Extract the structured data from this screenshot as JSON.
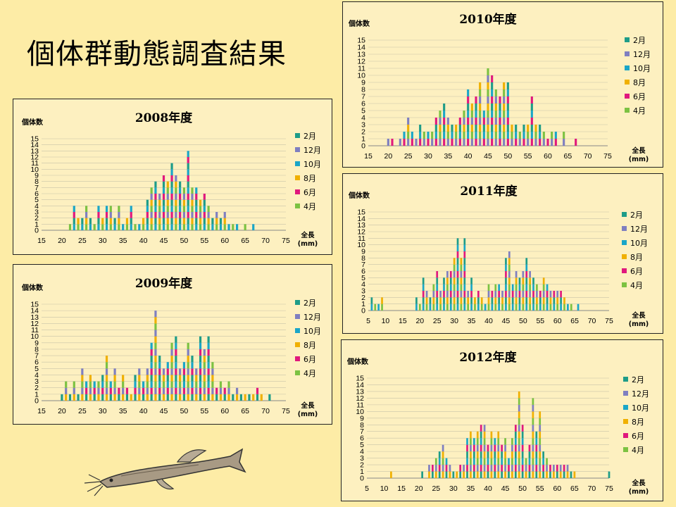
{
  "slide": {
    "title": "個体群動態調査結果"
  },
  "labels": {
    "y_axis": "個体数",
    "x_axis_top": "全長",
    "x_axis_unit": "(mm)"
  },
  "legend": [
    {
      "label": "2月",
      "color": "#1e9c88"
    },
    {
      "label": "12月",
      "color": "#7f7fc0"
    },
    {
      "label": "10月",
      "color": "#1aa6c8"
    },
    {
      "label": "8月",
      "color": "#f0b000"
    },
    {
      "label": "6月",
      "color": "#e0197d"
    },
    {
      "label": "4月",
      "color": "#7cc242"
    }
  ],
  "decoration": {
    "image": "catfish-illustration"
  },
  "chart_data": [
    {
      "type": "bar",
      "stacked": true,
      "title": "2008年度",
      "ylabel": "個体数",
      "xlabel": "全長 (mm)",
      "xlim": [
        15,
        75
      ],
      "ylim": [
        0,
        15
      ],
      "xticks": [
        15,
        20,
        25,
        30,
        35,
        40,
        45,
        50,
        55,
        60,
        65,
        70,
        75
      ],
      "totals": [
        [
          22,
          1
        ],
        [
          23,
          4
        ],
        [
          24,
          2
        ],
        [
          25,
          2
        ],
        [
          26,
          4
        ],
        [
          27,
          2
        ],
        [
          28,
          1
        ],
        [
          29,
          4
        ],
        [
          30,
          2
        ],
        [
          31,
          4
        ],
        [
          32,
          4
        ],
        [
          33,
          2
        ],
        [
          34,
          4
        ],
        [
          35,
          1
        ],
        [
          36,
          2
        ],
        [
          37,
          4
        ],
        [
          38,
          1
        ],
        [
          39,
          1
        ],
        [
          40,
          2
        ],
        [
          41,
          5
        ],
        [
          42,
          7
        ],
        [
          43,
          8
        ],
        [
          44,
          6
        ],
        [
          45,
          9
        ],
        [
          46,
          8
        ],
        [
          47,
          11
        ],
        [
          48,
          9
        ],
        [
          49,
          8
        ],
        [
          50,
          7
        ],
        [
          51,
          13
        ],
        [
          52,
          7
        ],
        [
          53,
          7
        ],
        [
          54,
          5
        ],
        [
          55,
          6
        ],
        [
          56,
          4
        ],
        [
          57,
          2
        ],
        [
          58,
          3
        ],
        [
          59,
          2
        ],
        [
          60,
          3
        ],
        [
          61,
          1
        ],
        [
          62,
          1
        ],
        [
          63,
          1
        ],
        [
          65,
          1
        ],
        [
          67,
          1
        ]
      ],
      "month_order": [
        "4月",
        "6月",
        "8月",
        "10月",
        "12月",
        "2月"
      ]
    },
    {
      "type": "bar",
      "stacked": true,
      "title": "2009年度",
      "ylabel": "個体数",
      "xlabel": "全長 (mm)",
      "xlim": [
        15,
        75
      ],
      "ylim": [
        0,
        15
      ],
      "xticks": [
        15,
        20,
        25,
        30,
        35,
        40,
        45,
        50,
        55,
        60,
        65,
        70,
        75
      ],
      "totals": [
        [
          20,
          1
        ],
        [
          21,
          3
        ],
        [
          22,
          1
        ],
        [
          23,
          3
        ],
        [
          24,
          1
        ],
        [
          25,
          5
        ],
        [
          26,
          3
        ],
        [
          27,
          4
        ],
        [
          28,
          3
        ],
        [
          29,
          3
        ],
        [
          30,
          4
        ],
        [
          31,
          7
        ],
        [
          32,
          3
        ],
        [
          33,
          5
        ],
        [
          34,
          2
        ],
        [
          35,
          4
        ],
        [
          36,
          2
        ],
        [
          37,
          1
        ],
        [
          38,
          4
        ],
        [
          39,
          5
        ],
        [
          40,
          3
        ],
        [
          41,
          5
        ],
        [
          42,
          9
        ],
        [
          43,
          14
        ],
        [
          44,
          7
        ],
        [
          45,
          5
        ],
        [
          46,
          6
        ],
        [
          47,
          9
        ],
        [
          48,
          10
        ],
        [
          49,
          5
        ],
        [
          50,
          6
        ],
        [
          51,
          9
        ],
        [
          52,
          7
        ],
        [
          53,
          5
        ],
        [
          54,
          10
        ],
        [
          55,
          8
        ],
        [
          56,
          10
        ],
        [
          57,
          6
        ],
        [
          58,
          2
        ],
        [
          59,
          3
        ],
        [
          60,
          2
        ],
        [
          61,
          3
        ],
        [
          62,
          1
        ],
        [
          63,
          2
        ],
        [
          64,
          1
        ],
        [
          65,
          1
        ],
        [
          66,
          1
        ],
        [
          67,
          1
        ],
        [
          68,
          2
        ],
        [
          69,
          1
        ],
        [
          71,
          1
        ]
      ],
      "month_order": [
        "4月",
        "6月",
        "8月",
        "10月",
        "12月",
        "2月"
      ]
    },
    {
      "type": "bar",
      "stacked": true,
      "title": "2010年度",
      "ylabel": "個体数",
      "xlabel": "全長 (mm)",
      "xlim": [
        15,
        75
      ],
      "ylim": [
        0,
        15
      ],
      "xticks": [
        15,
        20,
        25,
        30,
        35,
        40,
        45,
        50,
        55,
        60,
        65,
        70,
        75
      ],
      "totals": [
        [
          20,
          1
        ],
        [
          21,
          1
        ],
        [
          23,
          1
        ],
        [
          24,
          2
        ],
        [
          25,
          4
        ],
        [
          26,
          2
        ],
        [
          27,
          1
        ],
        [
          28,
          3
        ],
        [
          29,
          2
        ],
        [
          30,
          2
        ],
        [
          31,
          2
        ],
        [
          32,
          4
        ],
        [
          33,
          5
        ],
        [
          34,
          6
        ],
        [
          35,
          4
        ],
        [
          36,
          3
        ],
        [
          37,
          3
        ],
        [
          38,
          4
        ],
        [
          39,
          5
        ],
        [
          40,
          8
        ],
        [
          41,
          6
        ],
        [
          42,
          7
        ],
        [
          43,
          9
        ],
        [
          44,
          5
        ],
        [
          45,
          11
        ],
        [
          46,
          10
        ],
        [
          47,
          8
        ],
        [
          48,
          7
        ],
        [
          49,
          9
        ],
        [
          50,
          9
        ],
        [
          51,
          3
        ],
        [
          52,
          3
        ],
        [
          53,
          2
        ],
        [
          54,
          3
        ],
        [
          55,
          3
        ],
        [
          56,
          7
        ],
        [
          57,
          3
        ],
        [
          58,
          3
        ],
        [
          59,
          2
        ],
        [
          60,
          1
        ],
        [
          61,
          2
        ],
        [
          62,
          2
        ],
        [
          64,
          2
        ],
        [
          67,
          1
        ]
      ],
      "month_order": [
        "4月",
        "6月",
        "8月",
        "10月",
        "12月",
        "2月"
      ]
    },
    {
      "type": "bar",
      "stacked": true,
      "title": "2011年度",
      "ylabel": "個体数",
      "xlabel": "全長 (mm)",
      "xlim": [
        5,
        75
      ],
      "ylim": [
        0,
        15
      ],
      "xticks": [
        5,
        10,
        15,
        20,
        25,
        30,
        35,
        40,
        45,
        50,
        55,
        60,
        65,
        70,
        75
      ],
      "totals": [
        [
          6,
          2
        ],
        [
          7,
          1
        ],
        [
          8,
          1
        ],
        [
          9,
          2
        ],
        [
          19,
          2
        ],
        [
          20,
          1
        ],
        [
          21,
          5
        ],
        [
          22,
          3
        ],
        [
          23,
          2
        ],
        [
          24,
          4
        ],
        [
          25,
          6
        ],
        [
          26,
          3
        ],
        [
          27,
          5
        ],
        [
          28,
          6
        ],
        [
          29,
          6
        ],
        [
          30,
          8
        ],
        [
          31,
          11
        ],
        [
          32,
          8
        ],
        [
          33,
          11
        ],
        [
          34,
          3
        ],
        [
          35,
          5
        ],
        [
          36,
          2
        ],
        [
          37,
          3
        ],
        [
          38,
          2
        ],
        [
          39,
          1
        ],
        [
          40,
          4
        ],
        [
          41,
          3
        ],
        [
          42,
          4
        ],
        [
          43,
          4
        ],
        [
          44,
          3
        ],
        [
          45,
          8
        ],
        [
          46,
          9
        ],
        [
          47,
          4
        ],
        [
          48,
          6
        ],
        [
          49,
          5
        ],
        [
          50,
          6
        ],
        [
          51,
          8
        ],
        [
          52,
          6
        ],
        [
          53,
          5
        ],
        [
          54,
          4
        ],
        [
          55,
          3
        ],
        [
          56,
          5
        ],
        [
          57,
          4
        ],
        [
          58,
          3
        ],
        [
          59,
          3
        ],
        [
          60,
          3
        ],
        [
          61,
          3
        ],
        [
          62,
          2
        ],
        [
          63,
          1
        ],
        [
          64,
          1
        ],
        [
          66,
          1
        ]
      ],
      "month_order": [
        "4月",
        "6月",
        "8月",
        "10月",
        "12月",
        "2月"
      ]
    },
    {
      "type": "bar",
      "stacked": true,
      "title": "2012年度",
      "ylabel": "個体数",
      "xlabel": "全長 (mm)",
      "xlim": [
        5,
        75
      ],
      "ylim": [
        0,
        15
      ],
      "xticks": [
        5,
        10,
        15,
        20,
        25,
        30,
        35,
        40,
        45,
        50,
        55,
        60,
        65,
        70,
        75
      ],
      "totals": [
        [
          12,
          1
        ],
        [
          21,
          1
        ],
        [
          23,
          2
        ],
        [
          24,
          2
        ],
        [
          25,
          3
        ],
        [
          26,
          4
        ],
        [
          27,
          5
        ],
        [
          28,
          3
        ],
        [
          29,
          2
        ],
        [
          30,
          1
        ],
        [
          31,
          1
        ],
        [
          32,
          2
        ],
        [
          33,
          2
        ],
        [
          34,
          6
        ],
        [
          35,
          7
        ],
        [
          36,
          6
        ],
        [
          37,
          7
        ],
        [
          38,
          8
        ],
        [
          39,
          8
        ],
        [
          40,
          5
        ],
        [
          41,
          7
        ],
        [
          42,
          6
        ],
        [
          43,
          7
        ],
        [
          44,
          5
        ],
        [
          45,
          6
        ],
        [
          46,
          3
        ],
        [
          47,
          6
        ],
        [
          48,
          8
        ],
        [
          49,
          13
        ],
        [
          50,
          8
        ],
        [
          51,
          3
        ],
        [
          52,
          5
        ],
        [
          53,
          12
        ],
        [
          54,
          7
        ],
        [
          55,
          10
        ],
        [
          56,
          4
        ],
        [
          57,
          3
        ],
        [
          58,
          2
        ],
        [
          59,
          2
        ],
        [
          60,
          2
        ],
        [
          61,
          2
        ],
        [
          62,
          2
        ],
        [
          63,
          2
        ],
        [
          64,
          1
        ],
        [
          65,
          1
        ],
        [
          75,
          1
        ]
      ],
      "month_order": [
        "4月",
        "6月",
        "8月",
        "10月",
        "12月",
        "2月"
      ]
    }
  ]
}
